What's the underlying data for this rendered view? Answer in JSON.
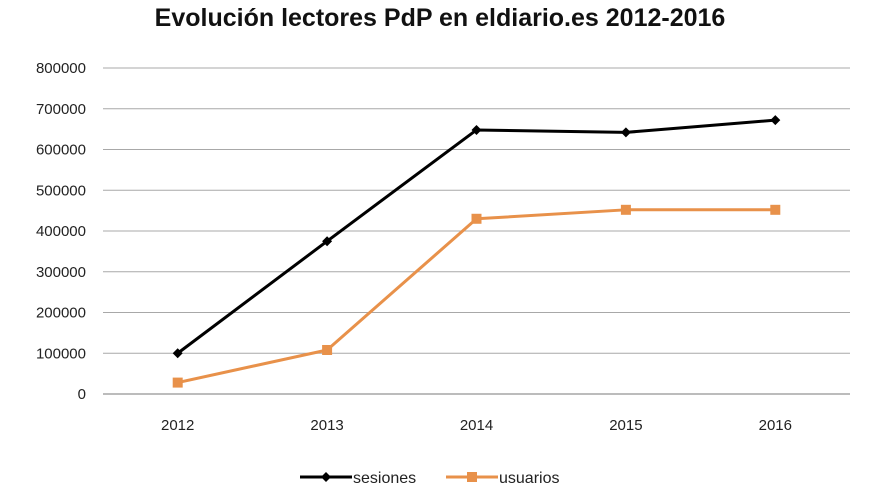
{
  "chart_data": {
    "type": "line",
    "title": "Evolución lectores PdP en eldiario.es 2012-2016",
    "xlabel": "",
    "ylabel": "",
    "categories": [
      "2012",
      "2013",
      "2014",
      "2015",
      "2016"
    ],
    "y_ticks": [
      "0",
      "100000",
      "200000",
      "300000",
      "400000",
      "500000",
      "600000",
      "700000",
      "800000"
    ],
    "ylim": [
      0,
      800000
    ],
    "grid": true,
    "legend_position": "bottom",
    "series": [
      {
        "name": "sesiones",
        "color": "#000000",
        "marker": "diamond",
        "values": [
          100000,
          375000,
          648000,
          642000,
          672000
        ]
      },
      {
        "name": "usuarios",
        "color": "#e8914a",
        "marker": "square",
        "values": [
          28000,
          108000,
          430000,
          452000,
          452000
        ]
      }
    ]
  }
}
